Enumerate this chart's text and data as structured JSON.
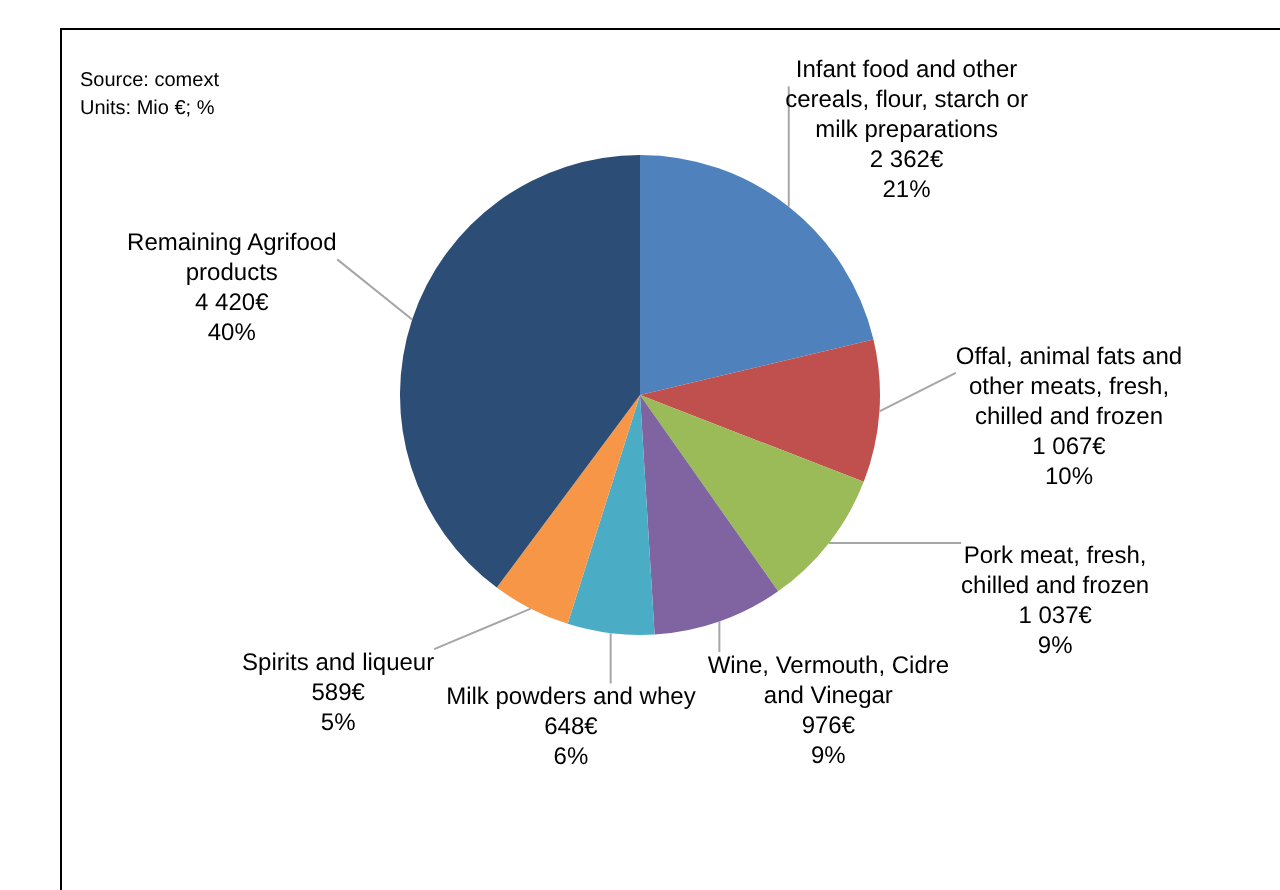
{
  "chart_data": {
    "type": "pie",
    "categories": [
      "Infant food and other cereals, flour, starch or milk preparations",
      "Offal, animal fats and other meats, fresh, chilled and frozen",
      "Pork meat, fresh, chilled and frozen",
      "Wine, Vermouth, Cidre and Vinegar",
      "Milk powders and whey",
      "Spirits and liqueur",
      "Remaining Agrifood products"
    ],
    "values": [
      2362,
      1067,
      1037,
      976,
      648,
      589,
      4420
    ],
    "colors": [
      "#4f81bd",
      "#c0504d",
      "#9bbb59",
      "#8064a2",
      "#4bacc6",
      "#f79646",
      "#2c4d75"
    ],
    "value_labels": [
      "2 362€\n21%",
      "1 067€\n10%",
      "1 037€\n9%",
      "976€\n9%",
      "648€\n6%",
      "589€\n5%",
      "4 420€\n40%"
    ],
    "annotations": [
      "Source: comext",
      "Units: Mio €; %"
    ],
    "legend": false
  }
}
